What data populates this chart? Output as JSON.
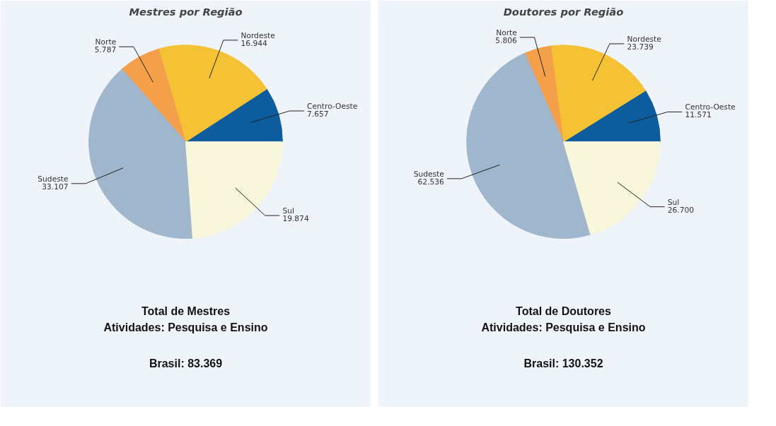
{
  "chart_data": [
    {
      "type": "pie",
      "title": "Mestres por Região",
      "categories": [
        "Centro-Oeste",
        "Nordeste",
        "Norte",
        "Sudeste",
        "Sul"
      ],
      "values": [
        7657,
        16944,
        5787,
        33107,
        19874
      ],
      "value_labels": [
        "7.657",
        "16.944",
        "5.787",
        "33.107",
        "19.874"
      ],
      "colors": [
        "#0d5c9e",
        "#f5c236",
        "#f4a04a",
        "#9fb6cd",
        "#f8f7dc"
      ],
      "annotations": [
        "Total de Mestres",
        "Atividades: Pesquisa e Ensino",
        "Brasil: 83.369"
      ]
    },
    {
      "type": "pie",
      "title": "Doutores por Região",
      "categories": [
        "Centro-Oeste",
        "Nordeste",
        "Norte",
        "Sudeste",
        "Sul"
      ],
      "values": [
        11571,
        23739,
        5806,
        62536,
        26700
      ],
      "value_labels": [
        "11.571",
        "23.739",
        "5.806",
        "62.536",
        "26.700"
      ],
      "colors": [
        "#0d5c9e",
        "#f5c236",
        "#f4a04a",
        "#9fb6cd",
        "#f8f7dc"
      ],
      "annotations": [
        "Total de Doutores",
        "Atividades: Pesquisa e Ensino",
        "Brasil: 130.352"
      ]
    }
  ]
}
